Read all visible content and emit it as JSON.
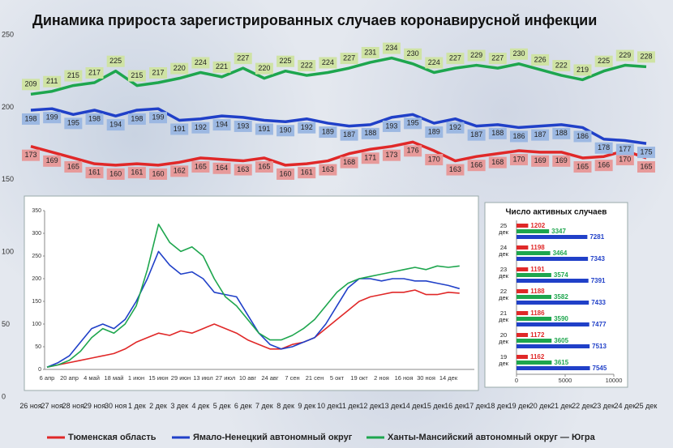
{
  "chart_data": [
    {
      "type": "line",
      "title": "Динамика прироста зарегистрированных случаев коронавирусной инфекции",
      "categories": [
        "26 ноя",
        "27 ноя",
        "28 ноя",
        "29 ноя",
        "30 ноя",
        "1 дек",
        "2 дек",
        "3 дек",
        "4 дек",
        "5 дек",
        "6 дек",
        "7 дек",
        "8 дек",
        "9 дек",
        "10 дек",
        "11 дек",
        "12 дек",
        "13 дек",
        "14 дек",
        "15 дек",
        "16 дек",
        "17 дек",
        "18 дек",
        "19 дек",
        "20 дек",
        "21 дек",
        "22 дек",
        "23 дек",
        "24 дек",
        "25 дек"
      ],
      "ylim": [
        0,
        250
      ],
      "yticks": [
        0,
        50,
        100,
        150,
        200,
        250
      ],
      "grid": false,
      "legend": "bottom",
      "series": [
        {
          "name": "Тюменская область",
          "color": "#e02828",
          "label_fill": "#e79a9a",
          "values": [
            173,
            169,
            165,
            161,
            160,
            161,
            160,
            162,
            165,
            164,
            163,
            165,
            160,
            161,
            163,
            168,
            171,
            173,
            176,
            170,
            163,
            166,
            168,
            170,
            169,
            169,
            165,
            166,
            170,
            165
          ]
        },
        {
          "name": "Ямало-Ненецкий автономный округ",
          "color": "#2040c8",
          "label_fill": "#9cb8e2",
          "values": [
            198,
            199,
            195,
            198,
            194,
            198,
            199,
            191,
            192,
            194,
            193,
            191,
            190,
            192,
            189,
            187,
            188,
            193,
            195,
            189,
            192,
            187,
            188,
            186,
            187,
            188,
            186,
            178,
            177,
            175
          ]
        },
        {
          "name": "Ханты-Мансийский автономный округ — Югра",
          "color": "#1ea64e",
          "label_fill": "#cfe3a4",
          "values": [
            209,
            211,
            215,
            217,
            225,
            215,
            217,
            220,
            224,
            221,
            227,
            220,
            225,
            222,
            224,
            227,
            231,
            234,
            230,
            224,
            227,
            229,
            227,
            230,
            226,
            222,
            219,
            225,
            229,
            228
          ]
        }
      ]
    },
    {
      "type": "line",
      "categories": [
        "6 апр",
        null,
        "20 апр",
        null,
        "4 май",
        null,
        "18 май",
        null,
        "1 июн",
        null,
        "15 июн",
        null,
        "29 июн",
        null,
        "13 июл",
        null,
        "27 июл",
        null,
        "10 авг",
        null,
        "24 авг",
        null,
        "7 сен",
        null,
        "21 сен",
        null,
        "5 окт",
        null,
        "19 окт",
        null,
        "2 ноя",
        null,
        "16 ноя",
        null,
        "30 ноя",
        null,
        "14 дек",
        null
      ],
      "ylim": [
        0,
        350
      ],
      "yticks": [
        0,
        50,
        100,
        150,
        200,
        250,
        300,
        350
      ],
      "grid": false,
      "series": [
        {
          "color": "#e02828",
          "values": [
            5,
            10,
            15,
            20,
            25,
            30,
            35,
            45,
            60,
            70,
            80,
            75,
            85,
            80,
            90,
            100,
            90,
            80,
            65,
            55,
            45,
            45,
            55,
            60,
            70,
            90,
            110,
            130,
            150,
            160,
            165,
            170,
            170,
            175,
            165,
            165,
            170,
            168
          ]
        },
        {
          "color": "#2040c8",
          "values": [
            5,
            15,
            30,
            60,
            90,
            100,
            90,
            110,
            150,
            200,
            260,
            230,
            210,
            215,
            200,
            170,
            165,
            160,
            120,
            80,
            55,
            45,
            50,
            60,
            70,
            100,
            140,
            180,
            200,
            200,
            195,
            200,
            200,
            195,
            195,
            190,
            185,
            178
          ]
        },
        {
          "color": "#1ea64e",
          "values": [
            5,
            10,
            20,
            40,
            70,
            90,
            80,
            100,
            140,
            220,
            320,
            280,
            260,
            270,
            250,
            200,
            160,
            140,
            110,
            80,
            65,
            65,
            75,
            90,
            110,
            140,
            170,
            190,
            200,
            205,
            210,
            215,
            220,
            225,
            220,
            228,
            225,
            228
          ]
        }
      ]
    },
    {
      "type": "barh",
      "title": "Число активных случаев",
      "categories": [
        "25 дек",
        "24 дек",
        "23 дек",
        "22 дек",
        "21 дек",
        "20 дек",
        "19 дек"
      ],
      "xlim": [
        0,
        10000
      ],
      "xticks": [
        0,
        5000,
        10000
      ],
      "series": [
        {
          "color": "#e02828",
          "values": [
            1202,
            1198,
            1191,
            1188,
            1186,
            1172,
            1162
          ]
        },
        {
          "color": "#1ea64e",
          "values": [
            3347,
            3464,
            3574,
            3582,
            3590,
            3605,
            3615
          ]
        },
        {
          "color": "#2040c8",
          "values": [
            7281,
            7343,
            7391,
            7433,
            7477,
            7513,
            7545
          ]
        }
      ]
    }
  ]
}
